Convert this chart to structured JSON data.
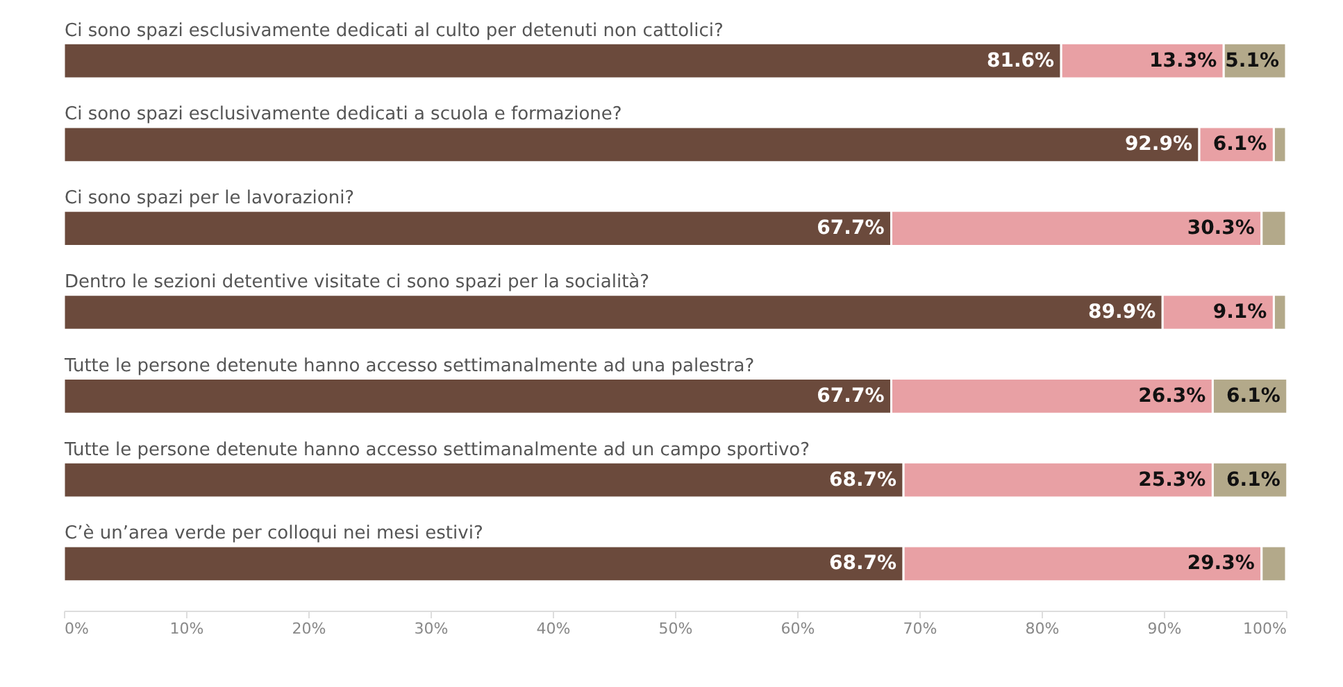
{
  "chart_data": {
    "type": "bar",
    "orientation": "horizontal",
    "stacked": true,
    "categories": [
      "Ci sono spazi esclusivamente dedicati al culto per detenuti non cattolici?",
      "Ci sono spazi esclusivamente dedicati a scuola e formazione?",
      "Ci sono spazi per le lavorazioni?",
      "Dentro le sezioni detentive visitate ci sono spazi per la socialità?",
      "Tutte le persone detenute hanno accesso settimanalmente ad una palestra?",
      "Tutte le persone detenute hanno accesso settimanalmente ad un campo sportivo?",
      "C’è un’area verde per colloqui nei mesi estivi?"
    ],
    "series": [
      {
        "color": "#6b4a3c",
        "values": [
          81.6,
          92.9,
          67.7,
          89.9,
          67.7,
          68.7,
          68.7
        ],
        "value_labels": [
          "81.6%",
          "92.9%",
          "67.7%",
          "89.9%",
          "67.7%",
          "68.7%",
          "68.7%"
        ]
      },
      {
        "color": "#e8a0a4",
        "values": [
          13.3,
          6.1,
          30.3,
          9.1,
          26.3,
          25.3,
          29.3
        ],
        "value_labels": [
          "13.3%",
          "6.1%",
          "30.3%",
          "9.1%",
          "26.3%",
          "25.3%",
          "29.3%"
        ]
      },
      {
        "color": "#b3a98a",
        "values": [
          5.1,
          1.0,
          2.0,
          1.0,
          6.1,
          6.1,
          2.0
        ],
        "value_labels": [
          "5.1%",
          null,
          null,
          null,
          "6.1%",
          "6.1%",
          null
        ]
      }
    ],
    "xlim": [
      0,
      100
    ],
    "xticks": [
      {
        "value": 0,
        "label": "0%"
      },
      {
        "value": 10,
        "label": "10%"
      },
      {
        "value": 20,
        "label": "20%"
      },
      {
        "value": 30,
        "label": "30%"
      },
      {
        "value": 40,
        "label": "40%"
      },
      {
        "value": 50,
        "label": "50%"
      },
      {
        "value": 60,
        "label": "60%"
      },
      {
        "value": 70,
        "label": "70%"
      },
      {
        "value": 80,
        "label": "80%"
      },
      {
        "value": 90,
        "label": "90%"
      },
      {
        "value": 100,
        "label": "100%"
      }
    ],
    "grid": false,
    "legend": false
  }
}
